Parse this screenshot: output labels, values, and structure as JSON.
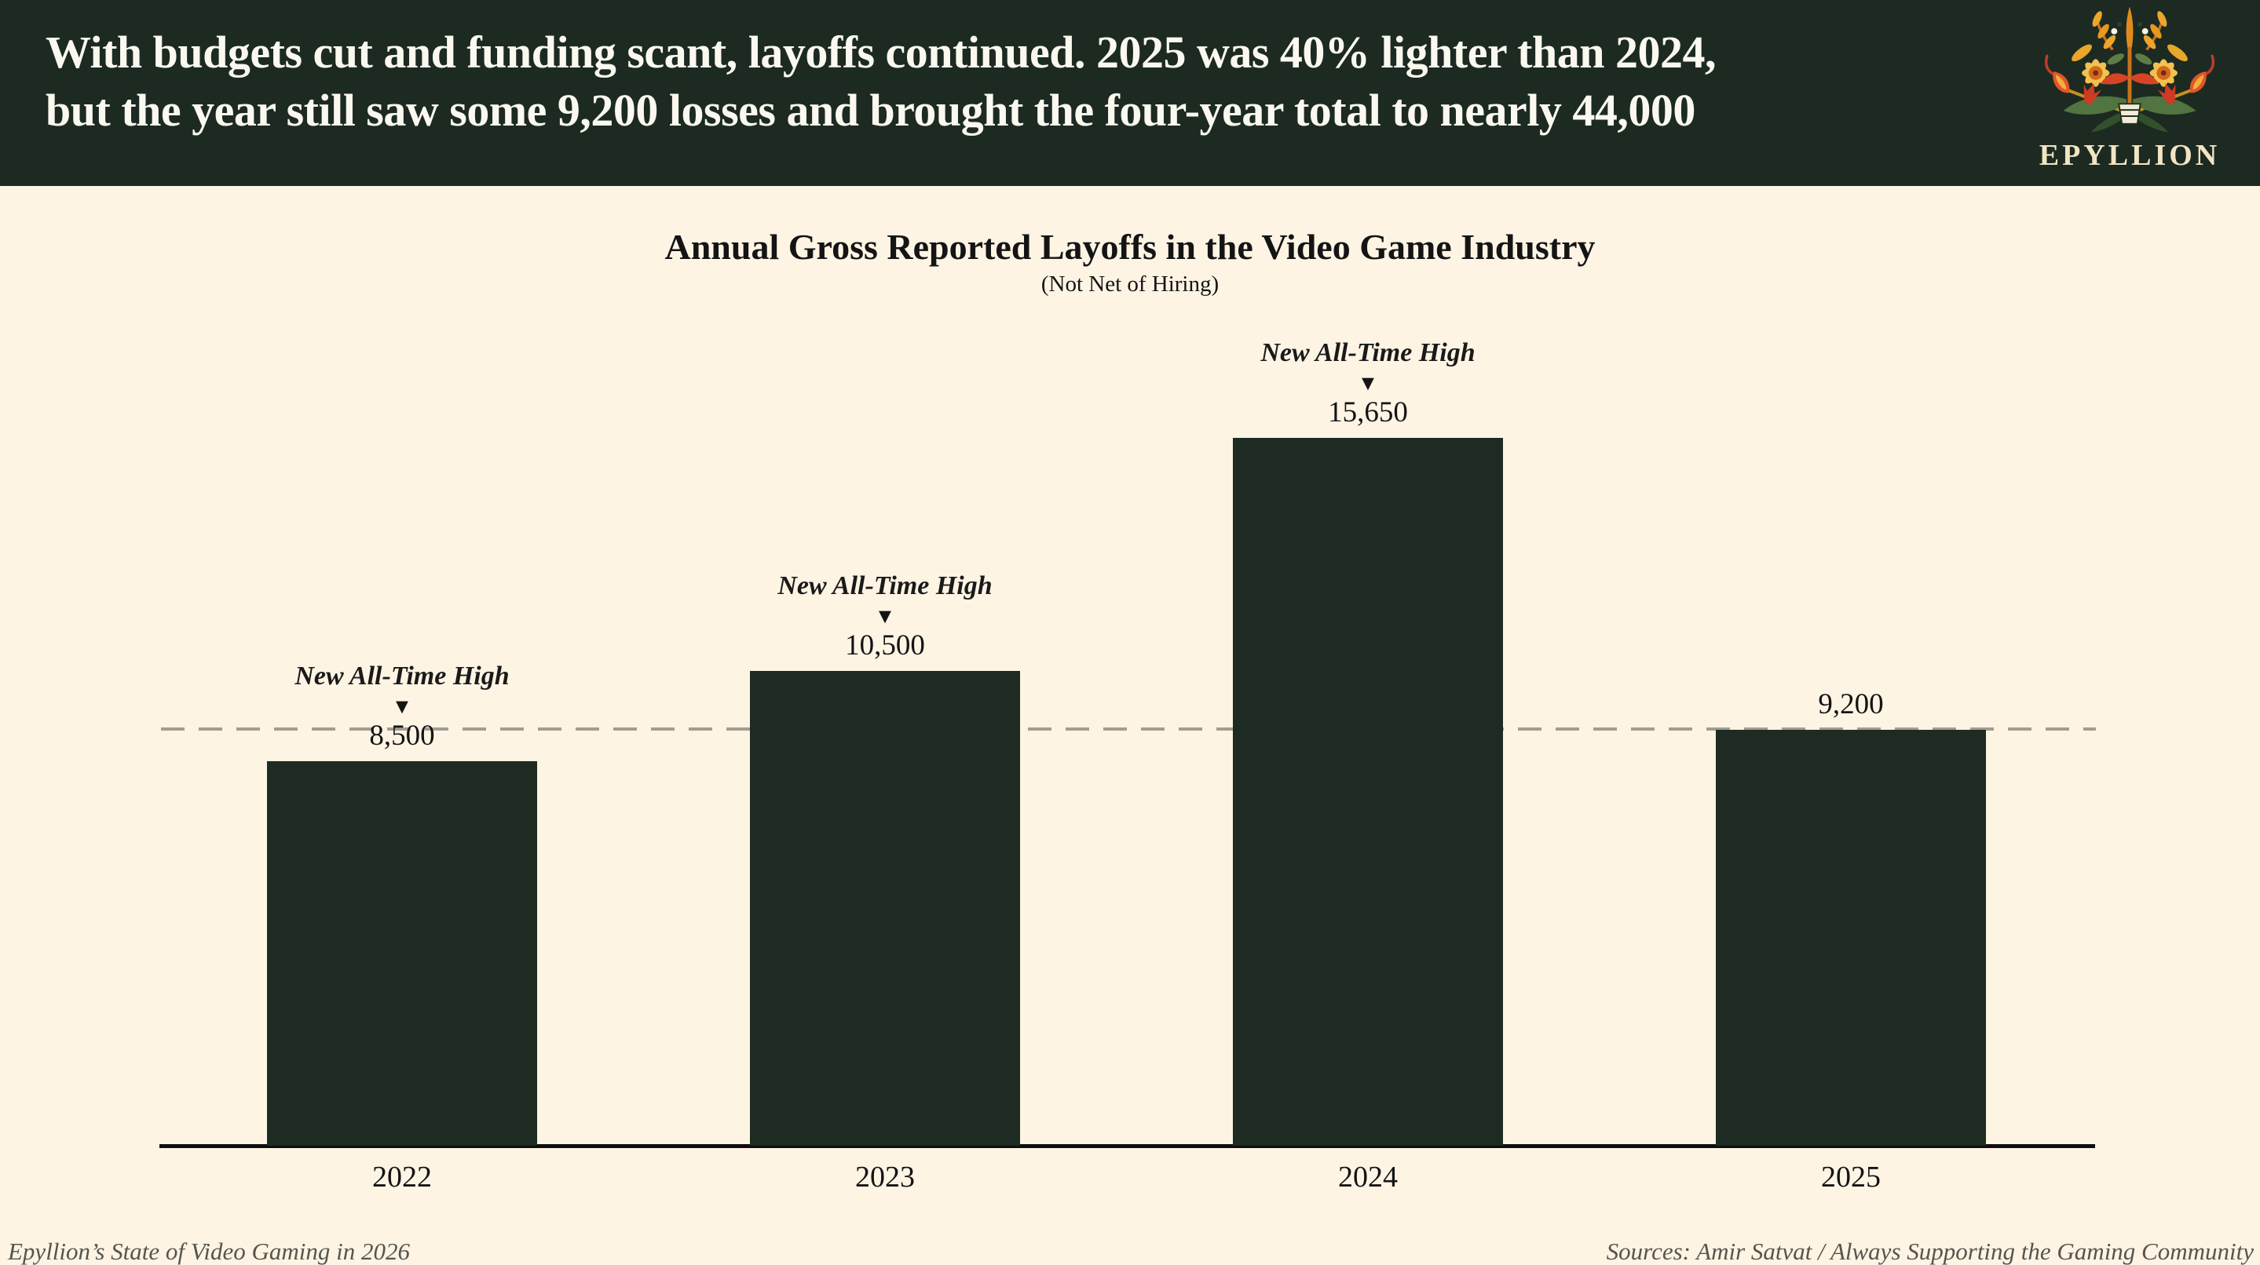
{
  "header": {
    "headline_line1": "With budgets cut and funding scant, layoffs continued. 2025 was 40% lighter than 2024,",
    "headline_line2": "but the year still saw some 9,200 losses and brought the four-year total to nearly 44,000",
    "logo_text": "EPYLLION"
  },
  "chart_data": {
    "type": "bar",
    "title": "Annual Gross Reported Layoffs in the Video Game Industry",
    "subtitle": "(Not Net of Hiring)",
    "categories": [
      "2022",
      "2023",
      "2024",
      "2025"
    ],
    "values": [
      8500,
      10500,
      15650,
      9200
    ],
    "value_labels": [
      "8,500",
      "10,500",
      "15,650",
      "9,200"
    ],
    "annotations": [
      {
        "category": "2022",
        "label": "New All-Time High"
      },
      {
        "category": "2023",
        "label": "New All-Time High"
      },
      {
        "category": "2024",
        "label": "New All-Time High"
      }
    ],
    "annotation_marker": "▼",
    "reference_line": {
      "value": 9200,
      "style": "dashed"
    },
    "xlabel": "",
    "ylabel": "",
    "ylim": [
      0,
      17000
    ],
    "grid": false,
    "legend": "none",
    "bar_color": "#1d2b23",
    "background_color": "#fdf4e4",
    "banner_color": "#1c2a22",
    "reference_line_color": "#a29d92"
  },
  "footer": {
    "left": "Epyllion’s State of Video Gaming in 2026",
    "right": "Sources: Amir Satvat / Always Supporting the Gaming Community"
  }
}
